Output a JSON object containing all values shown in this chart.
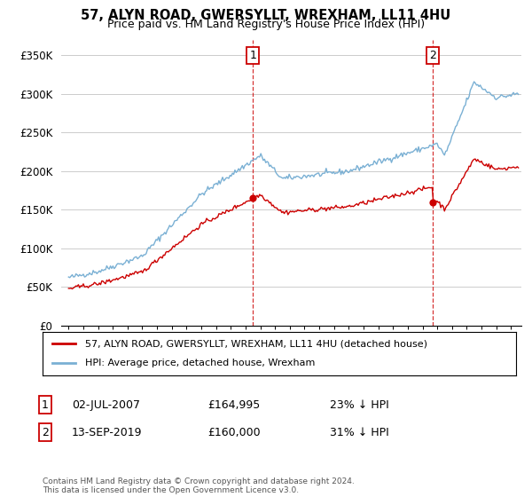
{
  "title": "57, ALYN ROAD, GWERSYLLT, WREXHAM, LL11 4HU",
  "subtitle": "Price paid vs. HM Land Registry's House Price Index (HPI)",
  "ylabel_ticks": [
    "£0",
    "£50K",
    "£100K",
    "£150K",
    "£200K",
    "£250K",
    "£300K",
    "£350K"
  ],
  "ytick_values": [
    0,
    50000,
    100000,
    150000,
    200000,
    250000,
    300000,
    350000
  ],
  "ylim": [
    0,
    370000
  ],
  "sale1_year": 2007.5,
  "sale1_price": 164995,
  "sale1_label": "02-JUL-2007",
  "sale1_amount": "£164,995",
  "sale1_pct": "23% ↓ HPI",
  "sale2_year": 2019.71,
  "sale2_price": 160000,
  "sale2_label": "13-SEP-2019",
  "sale2_amount": "£160,000",
  "sale2_pct": "31% ↓ HPI",
  "legend_label1": "57, ALYN ROAD, GWERSYLLT, WREXHAM, LL11 4HU (detached house)",
  "legend_label2": "HPI: Average price, detached house, Wrexham",
  "footer": "Contains HM Land Registry data © Crown copyright and database right 2024.\nThis data is licensed under the Open Government Licence v3.0.",
  "property_color": "#cc0000",
  "hpi_color": "#7ab0d4",
  "vline_color": "#cc0000",
  "bg_color": "#ffffff",
  "grid_color": "#cccccc"
}
